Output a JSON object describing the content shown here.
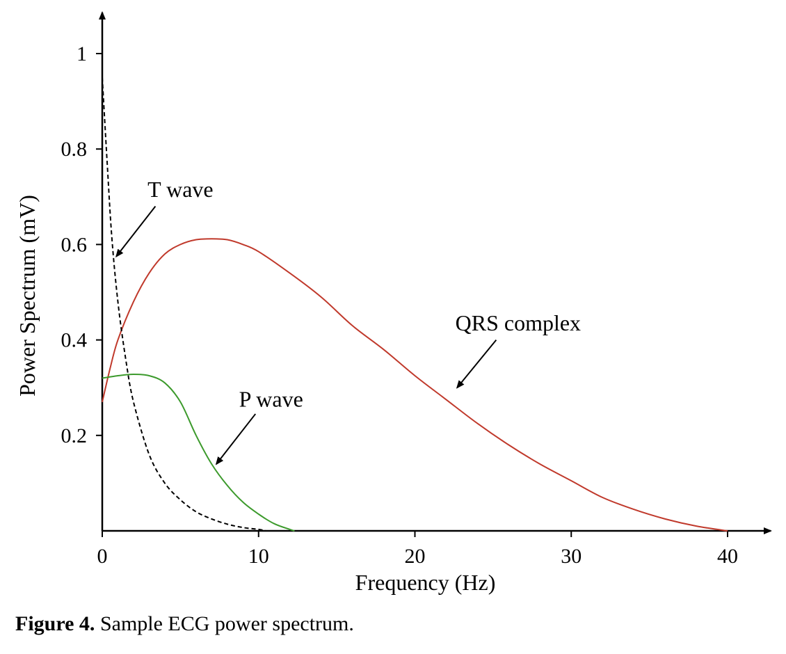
{
  "chart_data": {
    "type": "line",
    "xlabel": "Frequency (Hz)",
    "ylabel": "Power Spectrum (mV)",
    "xlim": [
      0,
      43
    ],
    "ylim": [
      0,
      1.07
    ],
    "x_ticks": [
      0,
      10,
      20,
      30,
      40
    ],
    "y_ticks": [
      0.2,
      0.4,
      0.6,
      0.8,
      1
    ],
    "x_tick_labels": [
      "0",
      "10",
      "20",
      "30",
      "40"
    ],
    "y_tick_labels": [
      "0.2",
      "0.4",
      "0.6",
      "0.8",
      "1"
    ],
    "grid": false,
    "series": [
      {
        "name": "QRS complex",
        "color": "#c0392b",
        "style": "solid",
        "points": [
          [
            0,
            0.27
          ],
          [
            0.5,
            0.34
          ],
          [
            1,
            0.4
          ],
          [
            2,
            0.48
          ],
          [
            3,
            0.54
          ],
          [
            4,
            0.58
          ],
          [
            5,
            0.6
          ],
          [
            6,
            0.61
          ],
          [
            7,
            0.612
          ],
          [
            8,
            0.61
          ],
          [
            9,
            0.6
          ],
          [
            10,
            0.585
          ],
          [
            12,
            0.54
          ],
          [
            14,
            0.49
          ],
          [
            16,
            0.43
          ],
          [
            18,
            0.38
          ],
          [
            20,
            0.325
          ],
          [
            22,
            0.275
          ],
          [
            24,
            0.225
          ],
          [
            26,
            0.18
          ],
          [
            28,
            0.14
          ],
          [
            30,
            0.105
          ],
          [
            32,
            0.07
          ],
          [
            34,
            0.045
          ],
          [
            36,
            0.025
          ],
          [
            38,
            0.01
          ],
          [
            40,
            0.0
          ]
        ]
      },
      {
        "name": "P wave",
        "color": "#3c9a2c",
        "style": "solid",
        "points": [
          [
            0,
            0.32
          ],
          [
            1,
            0.325
          ],
          [
            2,
            0.328
          ],
          [
            3,
            0.325
          ],
          [
            4,
            0.31
          ],
          [
            5,
            0.27
          ],
          [
            6,
            0.2
          ],
          [
            7,
            0.14
          ],
          [
            8,
            0.095
          ],
          [
            9,
            0.06
          ],
          [
            10,
            0.035
          ],
          [
            11,
            0.015
          ],
          [
            12,
            0.003
          ],
          [
            12.3,
            0.0
          ]
        ]
      },
      {
        "name": "T wave",
        "color": "#000000",
        "style": "dashed",
        "points": [
          [
            0,
            0.95
          ],
          [
            0.3,
            0.78
          ],
          [
            0.6,
            0.62
          ],
          [
            1,
            0.48
          ],
          [
            1.5,
            0.36
          ],
          [
            2,
            0.27
          ],
          [
            3,
            0.16
          ],
          [
            4,
            0.1
          ],
          [
            5,
            0.065
          ],
          [
            6,
            0.04
          ],
          [
            7,
            0.025
          ],
          [
            8,
            0.014
          ],
          [
            9,
            0.007
          ],
          [
            10,
            0.003
          ],
          [
            10.5,
            0.0
          ]
        ]
      }
    ],
    "annotations": [
      {
        "text": "T wave",
        "text_at": [
          5,
          0.7
        ],
        "arrow_from": [
          3.4,
          0.68
        ],
        "arrow_to": [
          0.9,
          0.575
        ]
      },
      {
        "text": "QRS complex",
        "text_at": [
          26.6,
          0.42
        ],
        "arrow_from": [
          25.2,
          0.4
        ],
        "arrow_to": [
          22.7,
          0.3
        ]
      },
      {
        "text": "P wave",
        "text_at": [
          10.8,
          0.26
        ],
        "arrow_from": [
          9.8,
          0.245
        ],
        "arrow_to": [
          7.3,
          0.14
        ]
      }
    ]
  },
  "caption": {
    "label": "Figure 4.",
    "text": " Sample ECG power spectrum."
  }
}
